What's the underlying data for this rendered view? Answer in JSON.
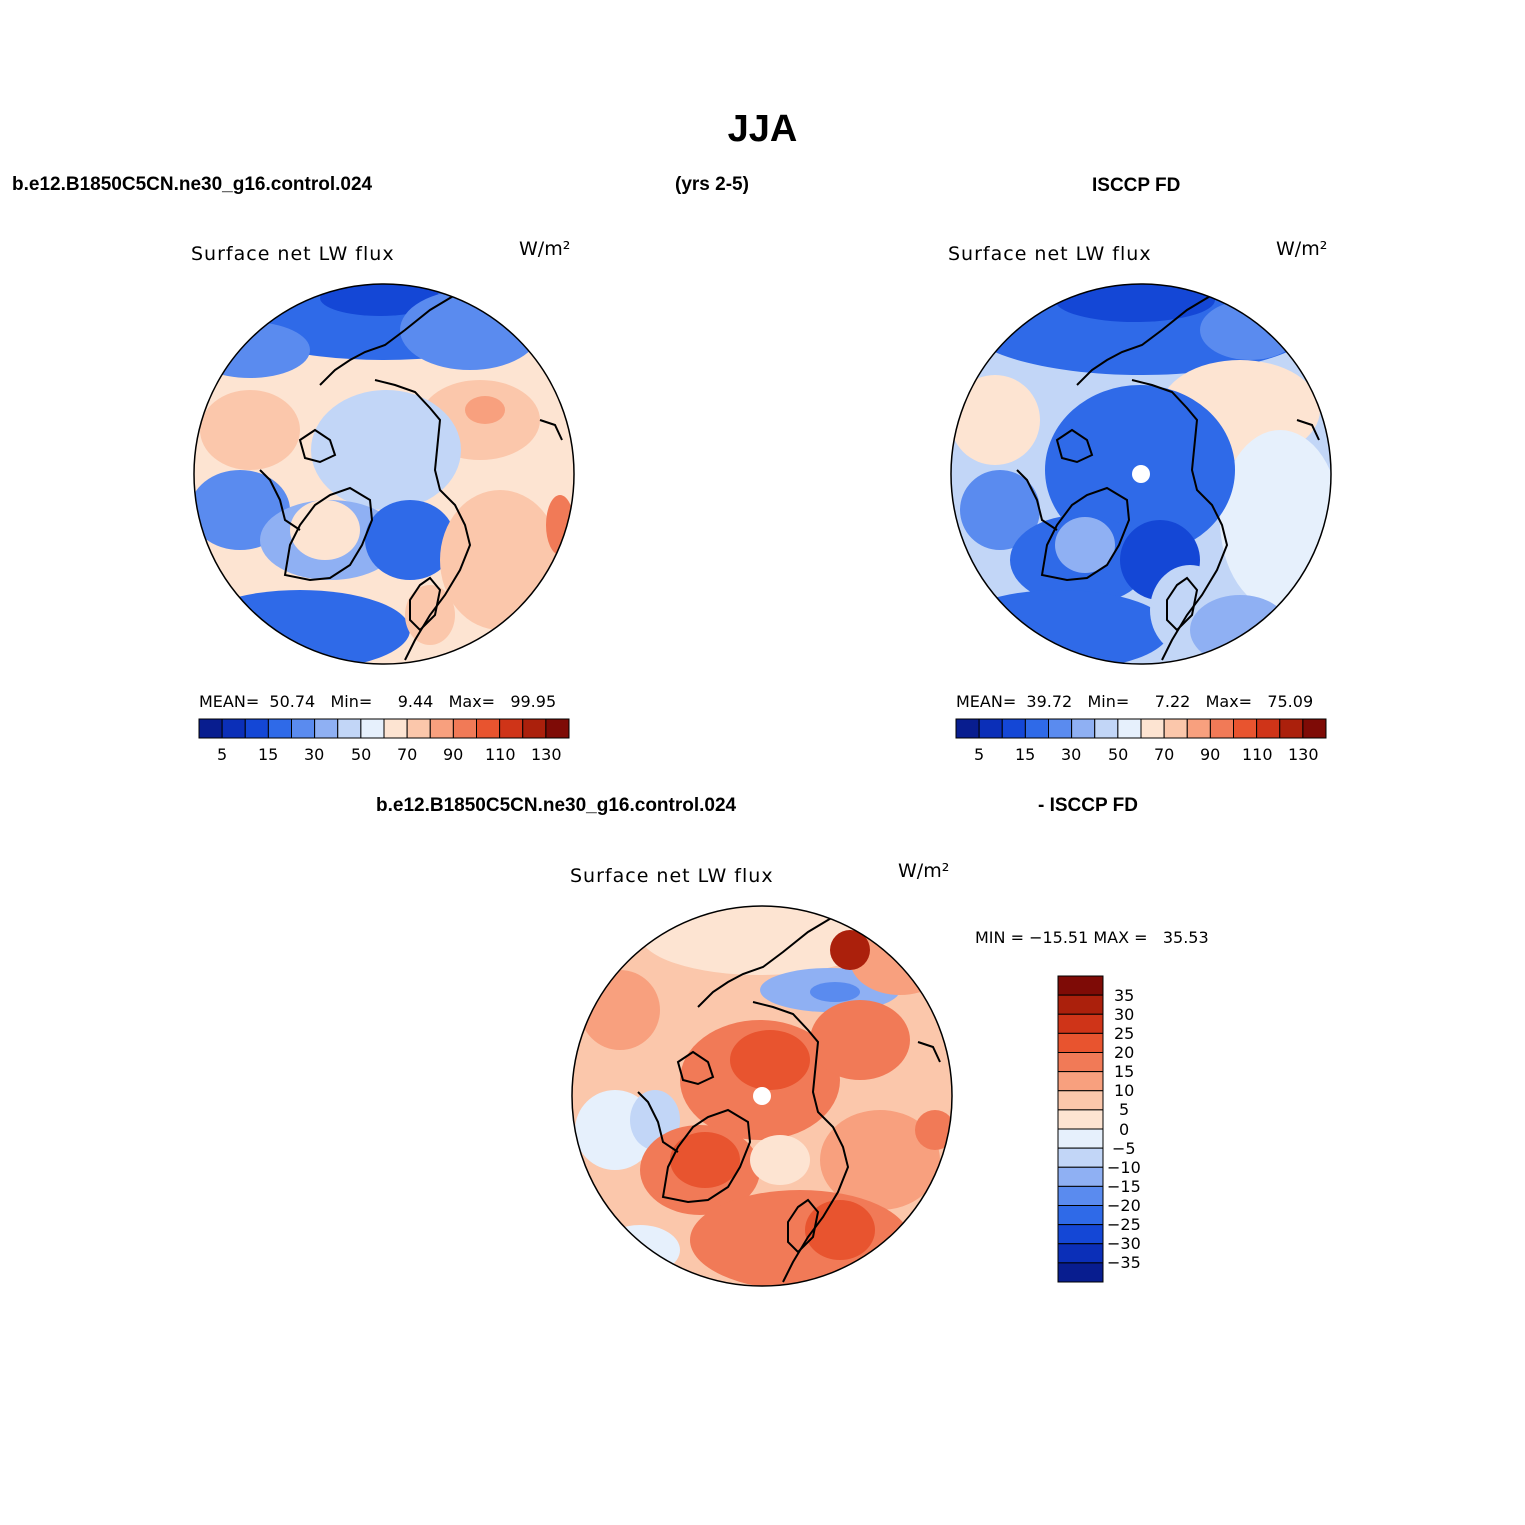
{
  "title": "JJA",
  "headers": {
    "model_name": "b.e12.B1850C5CN.ne30_g16.control.024",
    "years": "(yrs 2-5)",
    "obs_name": "ISCCP FD",
    "diff_model": "b.e12.B1850C5CN.ne30_g16.control.024",
    "diff_obs": "- ISCCP FD"
  },
  "panels": [
    {
      "id": "model",
      "title": "Surface net LW flux",
      "units": "W/m²",
      "stats": "MEAN=  50.74   Min=     9.44   Max=   99.95",
      "colorbar_ticks": [
        "5",
        "15",
        "30",
        "50",
        "70",
        "90",
        "110",
        "130"
      ],
      "colors": [
        "#081d8f",
        "#0b2fb8",
        "#1447d6",
        "#2f6ae8",
        "#5a8bef",
        "#8fb0f3",
        "#c2d6f7",
        "#e6f0fc",
        "#fde4d2",
        "#fbc7ab",
        "#f8a07e",
        "#f17a57",
        "#e8542f",
        "#cf3418",
        "#ab200c",
        "#7e0b06"
      ]
    },
    {
      "id": "obs",
      "title": "Surface net LW flux",
      "units": "W/m²",
      "stats": "MEAN=  39.72   Min=     7.22   Max=   75.09",
      "colorbar_ticks": [
        "5",
        "15",
        "30",
        "50",
        "70",
        "90",
        "110",
        "130"
      ],
      "colors": [
        "#081d8f",
        "#0b2fb8",
        "#1447d6",
        "#2f6ae8",
        "#5a8bef",
        "#8fb0f3",
        "#c2d6f7",
        "#e6f0fc",
        "#fde4d2",
        "#fbc7ab",
        "#f8a07e",
        "#f17a57",
        "#e8542f",
        "#cf3418",
        "#ab200c",
        "#7e0b06"
      ]
    },
    {
      "id": "diff",
      "title": "Surface net LW flux",
      "units": "W/m²",
      "stats": "MIN = −15.51 MAX =   35.53",
      "colorbar_ticks": [
        "35",
        "30",
        "25",
        "20",
        "15",
        "10",
        "5",
        "0",
        "−5",
        "−10",
        "−15",
        "−20",
        "−25",
        "−30",
        "−35"
      ],
      "colors": [
        "#7e0b06",
        "#ab200c",
        "#cf3418",
        "#e8542f",
        "#f17a57",
        "#f8a07e",
        "#fbc7ab",
        "#fde4d2",
        "#e6f0fc",
        "#c2d6f7",
        "#8fb0f3",
        "#5a8bef",
        "#2f6ae8",
        "#1447d6",
        "#0b2fb8",
        "#081d8f"
      ]
    }
  ]
}
